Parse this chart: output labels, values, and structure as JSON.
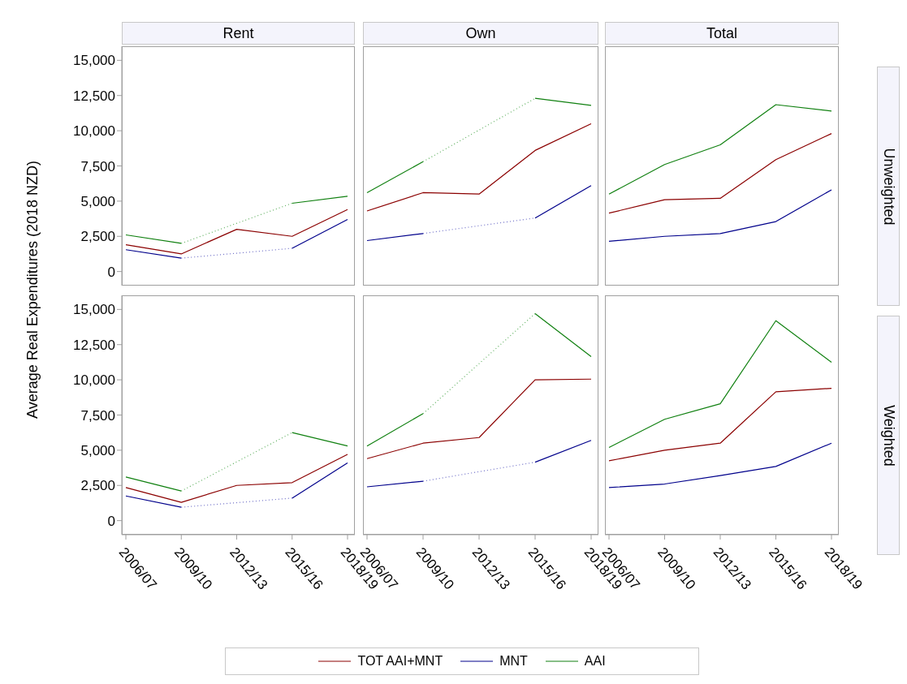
{
  "chart_data": [
    {
      "type": "line",
      "title": "Rent",
      "ylabel": "Average Real Expenditures (2018 NZD)",
      "categories": [
        "2006/07",
        "2009/10",
        "2012/13",
        "2015/16",
        "2018/19"
      ],
      "ylim": [
        -1000,
        16000
      ],
      "yticks": [
        0,
        {
          "value": 2500,
          "label": "2,500"
        },
        {
          "value": 5000,
          "label": "5,000"
        },
        {
          "value": 7500,
          "label": "7,500"
        },
        {
          "value": 10000,
          "label": "10,000"
        },
        {
          "value": 12500,
          "label": "12,500"
        },
        {
          "value": 15000,
          "label": "15,000"
        }
      ],
      "tick_labels": "y",
      "legend": "bottom",
      "series": [
        {
          "name": "TOT AAI+MNT",
          "color": "#8b0000",
          "values": [
            1900,
            1250,
            3000,
            2500,
            4400
          ]
        },
        {
          "name": "MNT",
          "color": "#00008b",
          "values": [
            1550,
            950,
            null,
            1650,
            3700
          ]
        },
        {
          "name": "AAI",
          "color": "#108010",
          "values": [
            2600,
            2000,
            null,
            4850,
            5350
          ]
        },
        {
          "color": "#7070c8",
          "line_style": "dotted",
          "x": [
            "2009/10",
            "2015/16"
          ],
          "values": [
            950,
            1650
          ]
        },
        {
          "color": "#60b060",
          "line_style": "dotted",
          "x": [
            "2009/10",
            "2015/16"
          ],
          "values": [
            2000,
            4850
          ]
        }
      ]
    },
    {
      "type": "line",
      "title": "Own",
      "categories": [
        "2006/07",
        "2009/10",
        "2012/13",
        "2015/16",
        "2018/19"
      ],
      "ylim": [
        -1000,
        16000
      ],
      "tick_labels": false,
      "series": [
        {
          "color": "#8b0000",
          "values": [
            4300,
            5600,
            5500,
            8600,
            10500
          ]
        },
        {
          "color": "#00008b",
          "values": [
            2200,
            2700,
            null,
            3800,
            6100
          ]
        },
        {
          "color": "#108010",
          "values": [
            5600,
            7800,
            null,
            12300,
            11800
          ]
        },
        {
          "color": "#7070c8",
          "line_style": "dotted",
          "x": [
            "2009/10",
            "2015/16"
          ],
          "values": [
            2700,
            3800
          ]
        },
        {
          "color": "#60b060",
          "line_style": "dotted",
          "x": [
            "2009/10",
            "2015/16"
          ],
          "values": [
            7800,
            12300
          ]
        }
      ]
    },
    {
      "type": "line",
      "title": "Total",
      "y2label": "Unweighted",
      "categories": [
        "2006/07",
        "2009/10",
        "2012/13",
        "2015/16",
        "2018/19"
      ],
      "ylim": [
        -1000,
        16000
      ],
      "tick_labels": false,
      "series": [
        {
          "color": "#8b0000",
          "values": [
            4150,
            5100,
            5200,
            7950,
            9800
          ]
        },
        {
          "color": "#00008b",
          "values": [
            2150,
            2500,
            2700,
            3550,
            5800
          ]
        },
        {
          "color": "#108010",
          "values": [
            5500,
            7600,
            9000,
            11850,
            11400
          ]
        }
      ]
    },
    {
      "type": "line",
      "categories": [
        "2006/07",
        "2009/10",
        "2012/13",
        "2015/16",
        "2018/19"
      ],
      "ylim": [
        -1000,
        16000
      ],
      "yticks": [
        0,
        {
          "value": 2500,
          "label": "2,500"
        },
        {
          "value": 5000,
          "label": "5,000"
        },
        {
          "value": 7500,
          "label": "7,500"
        },
        {
          "value": 10000,
          "label": "10,000"
        },
        {
          "value": 12500,
          "label": "12,500"
        },
        {
          "value": 15000,
          "label": "15,000"
        }
      ],
      "series": [
        {
          "color": "#8b0000",
          "values": [
            2350,
            1300,
            2500,
            2700,
            4700
          ]
        },
        {
          "color": "#00008b",
          "values": [
            1750,
            950,
            null,
            1600,
            4100
          ]
        },
        {
          "color": "#108010",
          "values": [
            3100,
            2100,
            null,
            6250,
            5300
          ]
        },
        {
          "color": "#7070c8",
          "line_style": "dotted",
          "x": [
            "2009/10",
            "2015/16"
          ],
          "values": [
            950,
            1600
          ]
        },
        {
          "color": "#60b060",
          "line_style": "dotted",
          "x": [
            "2009/10",
            "2015/16"
          ],
          "values": [
            2100,
            6250
          ]
        }
      ]
    },
    {
      "type": "line",
      "categories": [
        "2006/07",
        "2009/10",
        "2012/13",
        "2015/16",
        "2018/19"
      ],
      "ylim": [
        -1000,
        16000
      ],
      "tick_labels": "x",
      "series": [
        {
          "color": "#8b0000",
          "values": [
            4400,
            5500,
            5900,
            10000,
            10050
          ]
        },
        {
          "color": "#00008b",
          "values": [
            2400,
            2800,
            null,
            4150,
            5700
          ]
        },
        {
          "color": "#108010",
          "values": [
            5300,
            7600,
            null,
            14700,
            11650
          ]
        },
        {
          "color": "#7070c8",
          "line_style": "dotted",
          "x": [
            "2009/10",
            "2015/16"
          ],
          "values": [
            2800,
            4150
          ]
        },
        {
          "color": "#60b060",
          "line_style": "dotted",
          "x": [
            "2009/10",
            "2015/16"
          ],
          "values": [
            7600,
            14700
          ]
        }
      ]
    },
    {
      "type": "line",
      "y2label": "Weighted",
      "categories": [
        "2006/07",
        "2009/10",
        "2012/13",
        "2015/16",
        "2018/19"
      ],
      "ylim": [
        -1000,
        16000
      ],
      "tick_labels": "x",
      "series": [
        {
          "color": "#8b0000",
          "values": [
            4250,
            5000,
            5500,
            9150,
            9400
          ]
        },
        {
          "color": "#00008b",
          "values": [
            2350,
            2600,
            3200,
            3850,
            5500
          ]
        },
        {
          "color": "#108010",
          "values": [
            5200,
            7200,
            8300,
            14200,
            11250
          ]
        }
      ]
    }
  ]
}
